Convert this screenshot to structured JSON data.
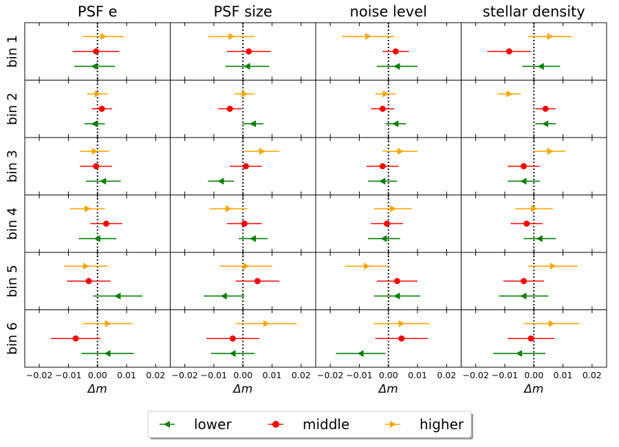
{
  "chart_data": {
    "type": "errorbar-grid",
    "columns": [
      "PSF e",
      "PSF size",
      "noise level",
      "stellar density"
    ],
    "rows": [
      "bin 1",
      "bin 2",
      "bin 3",
      "bin 4",
      "bin 5",
      "bin 6"
    ],
    "xlabel": "Δm",
    "xlim": [
      -0.025,
      0.025
    ],
    "xticks": [
      -0.02,
      -0.01,
      0.0,
      0.01,
      0.02
    ],
    "xtick_labels": [
      "−0.02",
      "−0.01",
      "0.00",
      "0.01",
      "0.02"
    ],
    "reference_line": 0.0,
    "series": [
      {
        "name": "lower",
        "label": "lower",
        "color": "#008000",
        "marker": "triangle-left"
      },
      {
        "name": "middle",
        "label": "middle",
        "color": "#ff0000",
        "marker": "circle"
      },
      {
        "name": "higher",
        "label": "higher",
        "color": "#ffa500",
        "marker": "triangle-right"
      }
    ],
    "data": [
      [
        {
          "lower": [
            -0.001,
            0.007
          ],
          "middle": [
            -0.0005,
            0.008
          ],
          "higher": [
            0.002,
            0.007
          ]
        },
        {
          "lower": [
            0.0015,
            0.0075
          ],
          "middle": [
            0.002,
            0.0075
          ],
          "higher": [
            -0.004,
            0.008
          ]
        },
        {
          "lower": [
            0.003,
            0.007
          ],
          "middle": [
            0.0025,
            0.0045
          ],
          "higher": [
            -0.007,
            0.009
          ]
        },
        {
          "lower": [
            0.0025,
            0.0065
          ],
          "middle": [
            -0.0085,
            0.0075
          ],
          "higher": [
            0.0055,
            0.0075
          ]
        }
      ],
      [
        {
          "lower": [
            -0.001,
            0.0035
          ],
          "middle": [
            0.0015,
            0.0035
          ],
          "higher": [
            0.0,
            0.0035
          ]
        },
        {
          "lower": [
            0.0035,
            0.0035
          ],
          "middle": [
            -0.0045,
            0.004
          ],
          "higher": [
            0.0005,
            0.0035
          ]
        },
        {
          "lower": [
            0.0025,
            0.0035
          ],
          "middle": [
            -0.002,
            0.004
          ],
          "higher": [
            -0.001,
            0.0035
          ]
        },
        {
          "lower": [
            0.004,
            0.0035
          ],
          "middle": [
            0.004,
            0.0035
          ],
          "higher": [
            -0.0085,
            0.004
          ]
        }
      ],
      [
        {
          "lower": [
            0.002,
            0.006
          ],
          "middle": [
            -0.0005,
            0.0055
          ],
          "higher": [
            -0.001,
            0.005
          ]
        },
        {
          "lower": [
            -0.0075,
            0.0045
          ],
          "middle": [
            0.001,
            0.0055
          ],
          "higher": [
            0.0065,
            0.006
          ]
        },
        {
          "lower": [
            -0.002,
            0.005
          ],
          "middle": [
            -0.002,
            0.0055
          ],
          "higher": [
            0.004,
            0.006
          ]
        },
        {
          "lower": [
            -0.0035,
            0.0055
          ],
          "middle": [
            -0.0035,
            0.0055
          ],
          "higher": [
            0.0055,
            0.0055
          ]
        }
      ],
      [
        {
          "lower": [
            0.0,
            0.0065
          ],
          "middle": [
            0.003,
            0.0055
          ],
          "higher": [
            -0.0035,
            0.006
          ]
        },
        {
          "lower": [
            0.0035,
            0.005
          ],
          "middle": [
            0.0005,
            0.006
          ],
          "higher": [
            -0.005,
            0.0065
          ]
        },
        {
          "lower": [
            -0.0015,
            0.0055
          ],
          "middle": [
            -0.0005,
            0.0055
          ],
          "higher": [
            0.0015,
            0.0065
          ]
        },
        {
          "lower": [
            0.002,
            0.0055
          ],
          "middle": [
            -0.0025,
            0.0055
          ],
          "higher": [
            0.0,
            0.0065
          ]
        }
      ],
      [
        {
          "lower": [
            0.007,
            0.0085
          ],
          "middle": [
            -0.003,
            0.0075
          ],
          "higher": [
            -0.004,
            0.0075
          ]
        },
        {
          "lower": [
            -0.0065,
            0.007
          ],
          "middle": [
            0.005,
            0.0075
          ],
          "higher": [
            0.001,
            0.009
          ]
        },
        {
          "lower": [
            0.003,
            0.008
          ],
          "middle": [
            0.003,
            0.007
          ],
          "higher": [
            -0.0075,
            0.0075
          ]
        },
        {
          "lower": [
            -0.0035,
            0.0085
          ],
          "middle": [
            -0.0035,
            0.007
          ],
          "higher": [
            0.0065,
            0.0085
          ]
        }
      ],
      [
        {
          "lower": [
            0.0035,
            0.009
          ],
          "middle": [
            -0.0075,
            0.0085
          ],
          "higher": [
            0.0035,
            0.0085
          ]
        },
        {
          "lower": [
            -0.0035,
            0.0075
          ],
          "middle": [
            -0.0035,
            0.009
          ],
          "higher": [
            0.008,
            0.0105
          ]
        },
        {
          "lower": [
            -0.0095,
            0.0085
          ],
          "middle": [
            0.0045,
            0.009
          ],
          "higher": [
            0.0045,
            0.0095
          ]
        },
        {
          "lower": [
            -0.005,
            0.009
          ],
          "middle": [
            -0.001,
            0.008
          ],
          "higher": [
            0.006,
            0.0095
          ]
        }
      ]
    ]
  }
}
